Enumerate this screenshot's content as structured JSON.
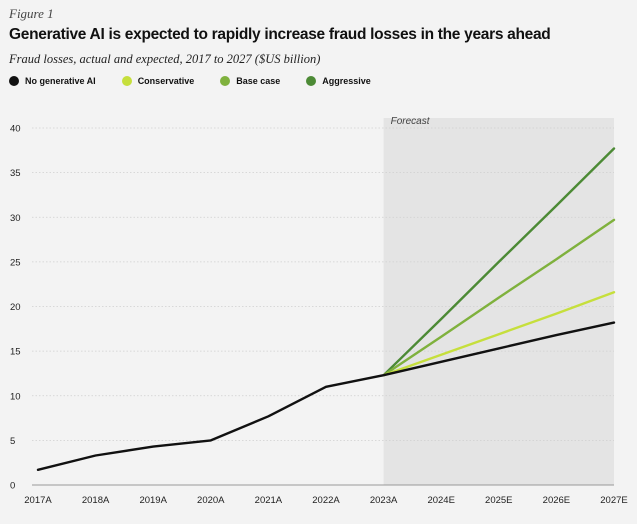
{
  "figure_label": "Figure 1",
  "chart_data": {
    "type": "line",
    "title": "Generative AI is expected to rapidly increase fraud losses in the years ahead",
    "subtitle": "Fraud losses, actual and expected, 2017 to 2027 ($US billion)",
    "xlabel": "",
    "ylabel": "",
    "categories": [
      "2017A",
      "2018A",
      "2019A",
      "2020A",
      "2021A",
      "2022A",
      "2023A",
      "2024E",
      "2025E",
      "2026E",
      "2027E"
    ],
    "ylim": [
      0,
      40
    ],
    "yticks": [
      "0",
      "5",
      "10",
      "15",
      "20",
      "25",
      "30",
      "35",
      "40"
    ],
    "forecast_label": "Forecast",
    "forecast_start": "2023A",
    "series": [
      {
        "name": "No generative AI",
        "color": "#111111",
        "values": [
          1.7,
          3.3,
          4.3,
          5.0,
          7.7,
          11.0,
          12.3,
          13.8,
          15.3,
          16.8,
          18.2
        ]
      },
      {
        "name": "Conservative",
        "color": "#c6df3c",
        "values": [
          null,
          null,
          null,
          null,
          null,
          null,
          12.3,
          14.6,
          16.9,
          19.2,
          21.6
        ]
      },
      {
        "name": "Base case",
        "color": "#7fb13d",
        "values": [
          null,
          null,
          null,
          null,
          null,
          null,
          12.3,
          16.6,
          21.0,
          25.3,
          29.7
        ]
      },
      {
        "name": "Aggressive",
        "color": "#4c8a35",
        "values": [
          null,
          null,
          null,
          null,
          null,
          null,
          12.3,
          18.6,
          25.0,
          31.3,
          37.7
        ]
      }
    ]
  }
}
